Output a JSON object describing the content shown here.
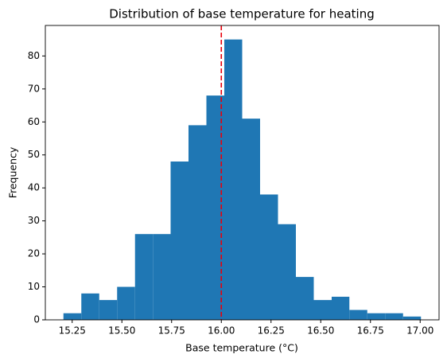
{
  "chart_data": {
    "type": "histogram",
    "title": "Distribution of base temperature for heating",
    "x_label": "Base temperature (°C)",
    "y_label": "Frequency",
    "bins": [
      15.206,
      15.296,
      15.386,
      15.476,
      15.566,
      15.656,
      15.745,
      15.835,
      15.925,
      16.015,
      16.105,
      16.195,
      16.285,
      16.375,
      16.465,
      16.555,
      16.644,
      16.734,
      16.824,
      16.914,
      17.004
    ],
    "counts": [
      2,
      8,
      6,
      10,
      26,
      26,
      48,
      59,
      68,
      85,
      61,
      38,
      29,
      13,
      6,
      7,
      3,
      2,
      2,
      1
    ],
    "color": "#1f77b4",
    "vline": {
      "x": 16.0,
      "color": "#e8000b",
      "style": "dashed"
    },
    "xlim": [
      15.115,
      17.095
    ],
    "ylim": [
      0,
      89.25
    ],
    "xticks": [
      15.25,
      {
        "value": 15.5,
        "label": "15.50"
      },
      15.75,
      {
        "value": 16,
        "label": "16.00"
      },
      16.25,
      {
        "value": 16.5,
        "label": "16.50"
      },
      16.75,
      {
        "value": 17,
        "label": "17.00"
      }
    ],
    "yticks": [
      0,
      10,
      20,
      30,
      40,
      50,
      60,
      70,
      80
    ],
    "grid": false
  }
}
